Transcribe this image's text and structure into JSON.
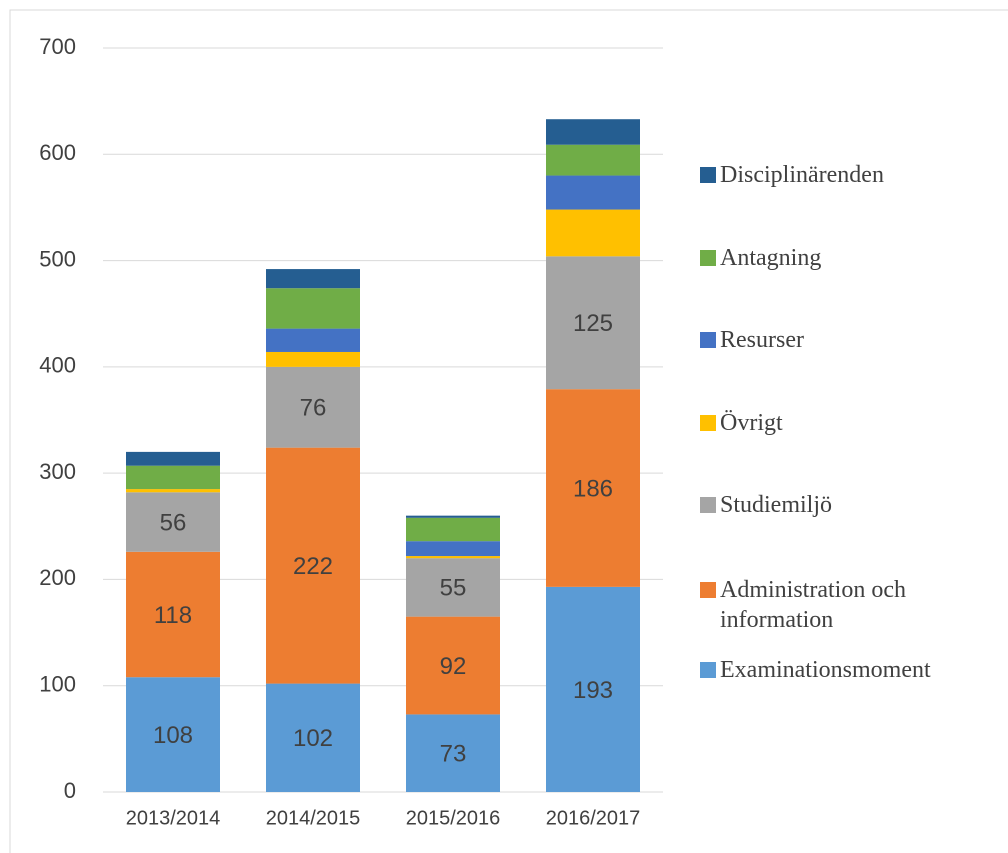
{
  "chart_data": {
    "type": "stacked_bar",
    "categories": [
      "2013/2014",
      "2014/2015",
      "2015/2016",
      "2016/2017"
    ],
    "series": [
      {
        "name": "Examinationsmoment",
        "color": "#5b9bd5",
        "values": [
          108,
          102,
          73,
          193
        ],
        "show_labels": true
      },
      {
        "name": "Administration och information",
        "color": "#ed7d31",
        "values": [
          118,
          222,
          92,
          186
        ],
        "show_labels": true
      },
      {
        "name": "Studiemiljö",
        "color": "#a5a5a5",
        "values": [
          56,
          76,
          55,
          125
        ],
        "show_labels": true
      },
      {
        "name": "Övrigt",
        "color": "#ffc000",
        "values": [
          3,
          14,
          2,
          44
        ],
        "show_labels": false
      },
      {
        "name": "Resurser",
        "color": "#4472c4",
        "values": [
          0,
          22,
          14,
          32
        ],
        "show_labels": false
      },
      {
        "name": "Antagning",
        "color": "#70ad47",
        "values": [
          22,
          38,
          22,
          29
        ],
        "show_labels": false
      },
      {
        "name": "Disciplinärenden",
        "color": "#255e91",
        "values": [
          13,
          18,
          2,
          24
        ],
        "show_labels": false
      }
    ],
    "ylim": [
      0,
      700
    ],
    "yticks": [
      0,
      100,
      200,
      300,
      400,
      500,
      600,
      700
    ],
    "grid": true,
    "legend": "right"
  }
}
